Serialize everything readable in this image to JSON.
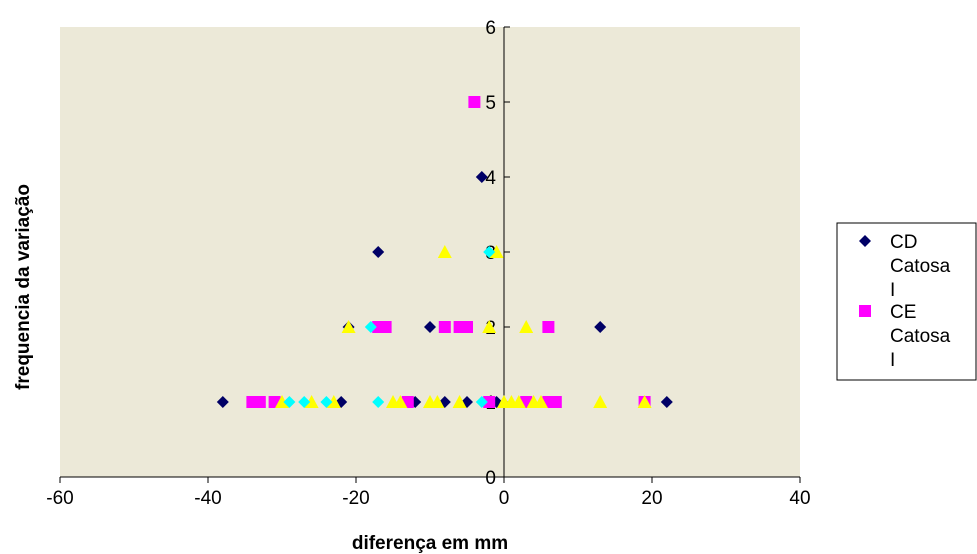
{
  "chart_data": {
    "type": "scatter",
    "title": "",
    "xlabel": "diferença em mm",
    "ylabel": "frequencia da variação",
    "xlim": [
      -60,
      40
    ],
    "ylim": [
      0,
      6
    ],
    "x_ticks": [
      -60,
      -40,
      -20,
      0,
      20,
      40
    ],
    "y_ticks": [
      0,
      1,
      2,
      3,
      4,
      5,
      6
    ],
    "grid": false,
    "legend_position": "right",
    "plot_background": "#ECE9D8",
    "series": [
      {
        "name": "CD Catosa I",
        "legend_lines": [
          "CD",
          "Catosa",
          "I"
        ],
        "marker": "diamond",
        "color": "#000066",
        "points": [
          [
            -38,
            1
          ],
          [
            -22,
            1
          ],
          [
            -12,
            1
          ],
          [
            -8,
            1
          ],
          [
            -5,
            1
          ],
          [
            -1,
            1
          ],
          [
            22,
            1
          ],
          [
            -21,
            2
          ],
          [
            -10,
            2
          ],
          [
            13,
            2
          ],
          [
            -17,
            3
          ],
          [
            -3,
            4
          ]
        ]
      },
      {
        "name": "CE Catosa I",
        "legend_lines": [
          "CE",
          "Catosa",
          "I"
        ],
        "marker": "square",
        "color": "#FF00FF",
        "points": [
          [
            -34,
            1
          ],
          [
            -33,
            1
          ],
          [
            -31,
            1
          ],
          [
            -13,
            1
          ],
          [
            -2,
            1
          ],
          [
            3,
            1
          ],
          [
            6,
            1
          ],
          [
            7,
            1
          ],
          [
            19,
            1
          ],
          [
            -17,
            2
          ],
          [
            -16,
            2
          ],
          [
            -8,
            2
          ],
          [
            -6,
            2
          ],
          [
            -5,
            2
          ],
          [
            6,
            2
          ],
          [
            -4,
            5
          ]
        ]
      },
      {
        "name": "",
        "marker": "triangle",
        "color": "#FFFF00",
        "points": [
          [
            -30,
            1
          ],
          [
            -26,
            1
          ],
          [
            -23,
            1
          ],
          [
            -15,
            1
          ],
          [
            -14,
            1
          ],
          [
            -10,
            1
          ],
          [
            -9,
            1
          ],
          [
            -6,
            1
          ],
          [
            0,
            1
          ],
          [
            1,
            1
          ],
          [
            2,
            1
          ],
          [
            4,
            1
          ],
          [
            5,
            1
          ],
          [
            13,
            1
          ],
          [
            19,
            1
          ],
          [
            -21,
            2
          ],
          [
            -2,
            2
          ],
          [
            3,
            2
          ],
          [
            -8,
            3
          ],
          [
            -1,
            3
          ]
        ]
      },
      {
        "name": "",
        "marker": "diamond",
        "color": "#00FFFF",
        "points": [
          [
            -29,
            1
          ],
          [
            -27,
            1
          ],
          [
            -24,
            1
          ],
          [
            -17,
            1
          ],
          [
            -3,
            1
          ],
          [
            -18,
            2
          ],
          [
            -2,
            3
          ]
        ]
      }
    ]
  }
}
